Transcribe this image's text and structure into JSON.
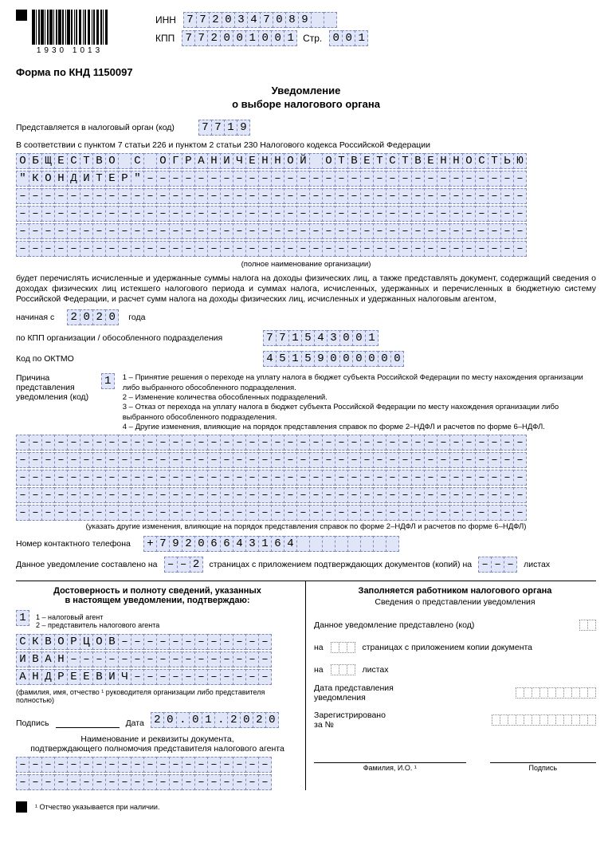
{
  "barcode_nums": "1930 1013",
  "inn_label": "ИНН",
  "inn": "7720347089",
  "kpp_label": "КПП",
  "kpp": "772001001",
  "page_label": "Стр.",
  "page_num": "001",
  "form_code": "Форма по КНД 1150097",
  "title_line1": "Уведомление",
  "title_line2": "о выборе налогового органа",
  "org_code_label": "Представляется в налоговый орган (код)",
  "org_code": "7719",
  "basis_text": "В соответствии с пунктом 7 статьи 226 и пунктом 2 статьи 230 Налогового кодекса Российской Федерации",
  "org_name_line1": "ОБЩЕСТВО С ОГРАНИЧЕННОЙ ОТВЕТСТВЕННОСТЬЮ",
  "org_name_line2": "\"КОНДИТЕР\"------------------------------",
  "org_name_dash_line": "----------------------------------------",
  "org_fullname_caption": "(полное наименование организации)",
  "transfer_text": "будет перечислять исчисленные и удержанные суммы налога на доходы физических лиц, а также представлять документ, содержащий сведения о доходах физических лиц истекшего налогового периода и суммах налога, исчисленных, удержанных и перечисленных в бюджетную систему Российской Федерации, и расчет сумм налога на доходы физических лиц, исчисленных и удержанных налоговым агентом,",
  "start_label": "начиная с",
  "year": "2020",
  "year_suffix": "года",
  "kpp_unit_label": "по КПП организации / обособленного подразделения",
  "kpp_unit": "771543001",
  "oktmo_label": "Код по ОКТМО",
  "oktmo": "45159000000",
  "reason_label_1": "Причина представления",
  "reason_label_2": "уведомления (код)",
  "reason_code": "1",
  "reason_text_1": "1 – Принятие решения о переходе на уплату налога в бюджет субъекта Российской Федерации по месту нахождения организации либо выбранного обособленного подразделения.",
  "reason_text_2": "2 – Изменение количества обособленных подразделений.",
  "reason_text_3": "3 – Отказ от перехода на уплату налога в бюджет субъекта Российской Федерации по месту нахождения организации либо выбранного обособленного подразделения.",
  "reason_text_4": "4 – Другие изменения, влияющие на порядок представления справок по форме 2–НДФЛ и расчетов по форме 6–НДФЛ.",
  "changes_dash_line": "----------------------------------------",
  "changes_caption": "(указать другие изменения, влияющие на порядок представления справок по форме 2–НДФЛ и расчетов по форме 6–НДФЛ)",
  "phone_label": "Номер контактного телефона",
  "phone": "+79206643164",
  "pages_prefix": "Данное уведомление составлено на",
  "pages_count": "--2",
  "pages_mid": "страницах с приложением подтверждающих документов (копий) на",
  "attach_count": "---",
  "attach_suffix": "листах",
  "confirm_heading_1": "Достоверность и полноту сведений, указанных",
  "confirm_heading_2": "в настоящем уведомлении, подтверждаю:",
  "signer_type": "1",
  "signer_legend_1": "1 – налоговый агент",
  "signer_legend_2": "2 – представитель налогового агента",
  "signer_name_1": "СКВОРЦОВ------------",
  "signer_name_2": "ИВАН----------------",
  "signer_name_3": "АНДРЕЕВИЧ-----------",
  "signer_caption": "(фамилия, имя, отчество ¹ руководителя организации либо представителя полностью)",
  "signature_label": "Подпись",
  "date_label": "Дата",
  "sign_date": "20.01.2020",
  "doc_title_1": "Наименование и реквизиты документа,",
  "doc_title_2": "подтверждающего полномочия представителя налогового агента",
  "doc_line": "--------------------",
  "right_heading": "Заполняется работником налогового органа",
  "right_sub": "Сведения о представлении уведомления",
  "right_presented_label": "Данное уведомление представлено (код)",
  "right_pages_prefix": "на",
  "right_pages_mid": "страницах с приложением копии документа",
  "right_sheets_prefix": "на",
  "right_sheets_suffix": "листах",
  "right_date_label_1": "Дата представления",
  "right_date_label_2": "уведомления",
  "right_reg_1": "Зарегистрировано",
  "right_reg_2": "за №",
  "fio_caption": "Фамилия, И.О. ¹",
  "sig_caption": "Подпись",
  "footnote": "¹ Отчество указывается при наличии.",
  "cell_width_40": 40,
  "cell_width_20": 20
}
